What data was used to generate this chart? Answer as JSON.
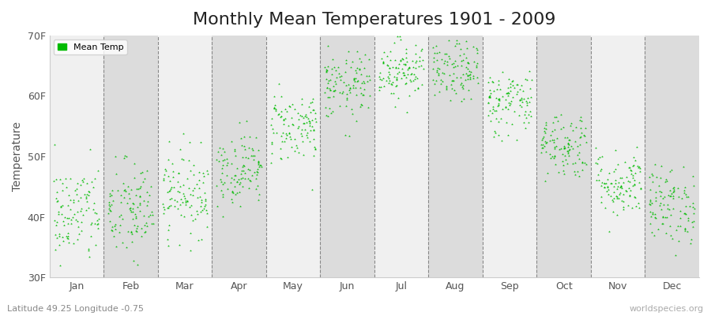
{
  "title": "Monthly Mean Temperatures 1901 - 2009",
  "ylabel": "Temperature",
  "xlabel_labels": [
    "Jan",
    "Feb",
    "Mar",
    "Apr",
    "May",
    "Jun",
    "Jul",
    "Aug",
    "Sep",
    "Oct",
    "Nov",
    "Dec"
  ],
  "subtitle": "Latitude 49.25 Longitude -0.75",
  "watermark": "worldspecies.org",
  "legend_label": "Mean Temp",
  "dot_color": "#00BB00",
  "background_color": "#FFFFFF",
  "band_color_odd": "#F0F0F0",
  "band_color_even": "#DCDCDC",
  "ylim_min": 30,
  "ylim_max": 70,
  "ytick_labels": [
    "30F",
    "40F",
    "50F",
    "60F",
    "70F"
  ],
  "ytick_values": [
    30,
    40,
    50,
    60,
    70
  ],
  "title_fontsize": 16,
  "axis_label_fontsize": 10,
  "tick_fontsize": 9,
  "dot_size": 5,
  "seed": 42,
  "n_years": 109,
  "monthly_means_f": [
    40.5,
    41.0,
    44.0,
    48.0,
    55.0,
    61.5,
    64.5,
    64.0,
    59.0,
    52.0,
    45.5,
    42.0
  ],
  "monthly_stds_f": [
    4.2,
    4.2,
    3.5,
    3.0,
    3.0,
    2.8,
    2.5,
    2.5,
    2.8,
    2.8,
    2.8,
    3.2
  ],
  "dashed_line_color": "#888888",
  "spine_color": "#CCCCCC"
}
